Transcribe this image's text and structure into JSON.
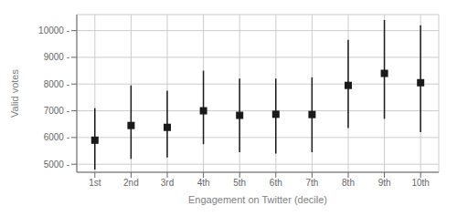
{
  "chart_data": {
    "type": "scatter",
    "xlabel": "Engagement on Twitter (decile)",
    "ylabel": "Valid votes",
    "categories": [
      "1st",
      "2nd",
      "3rd",
      "4th",
      "5th",
      "6th",
      "7th",
      "8th",
      "9th",
      "10th"
    ],
    "values": [
      5900,
      6450,
      6380,
      7000,
      6830,
      6870,
      6860,
      7950,
      8400,
      8050
    ],
    "lower": [
      4800,
      5200,
      5250,
      5750,
      5450,
      5400,
      5450,
      6350,
      6700,
      6200
    ],
    "upper": [
      7100,
      7950,
      7750,
      8500,
      8200,
      8200,
      8250,
      9650,
      10400,
      10200
    ],
    "ylim": [
      4700,
      10600
    ],
    "yticks": [
      {
        "value": 5000,
        "label": "5000 -"
      },
      {
        "value": 6000,
        "label": "6000 -"
      },
      {
        "value": 7000,
        "label": "7000 -"
      },
      {
        "value": 8000,
        "label": "8000 -"
      },
      {
        "value": 9000,
        "label": "9000 -"
      },
      {
        "value": 10000,
        "label": "10000 -"
      }
    ],
    "grid": true,
    "color": "#1a1a1a",
    "marker": "square"
  }
}
